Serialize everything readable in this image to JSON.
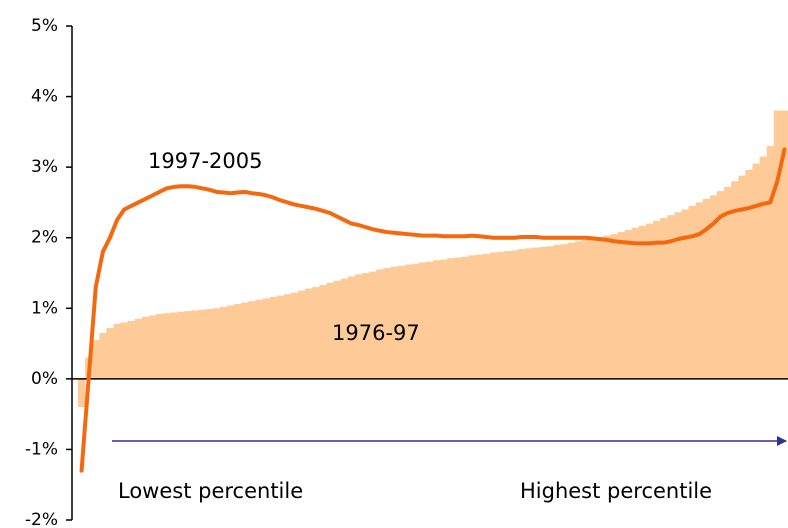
{
  "chart_data": {
    "type": "bar",
    "annotations": [
      "1997-2005",
      "1976-97",
      "Lowest percentile",
      "Highest percentile"
    ],
    "series": [
      {
        "name": "1976-97",
        "type": "bar",
        "color": "#fdca98",
        "values": [
          -0.4,
          0.3,
          0.55,
          0.65,
          0.72,
          0.78,
          0.8,
          0.82,
          0.85,
          0.88,
          0.9,
          0.92,
          0.93,
          0.94,
          0.95,
          0.96,
          0.97,
          0.98,
          0.99,
          1.0,
          1.02,
          1.04,
          1.06,
          1.08,
          1.1,
          1.12,
          1.14,
          1.16,
          1.18,
          1.2,
          1.22,
          1.25,
          1.28,
          1.3,
          1.33,
          1.36,
          1.39,
          1.42,
          1.45,
          1.48,
          1.5,
          1.52,
          1.55,
          1.57,
          1.59,
          1.6,
          1.62,
          1.63,
          1.65,
          1.66,
          1.68,
          1.69,
          1.71,
          1.72,
          1.73,
          1.75,
          1.76,
          1.77,
          1.79,
          1.8,
          1.81,
          1.82,
          1.84,
          1.85,
          1.86,
          1.87,
          1.88,
          1.9,
          1.91,
          1.93,
          1.95,
          1.97,
          1.99,
          2.01,
          2.03,
          2.05,
          2.08,
          2.11,
          2.14,
          2.17,
          2.2,
          2.24,
          2.28,
          2.32,
          2.36,
          2.4,
          2.45,
          2.5,
          2.55,
          2.6,
          2.66,
          2.72,
          2.8,
          2.88,
          2.96,
          3.05,
          3.15,
          3.3,
          3.8,
          3.8
        ]
      },
      {
        "name": "1997-2005",
        "type": "line",
        "color": "#f4680f",
        "values": [
          -1.3,
          0.0,
          1.3,
          1.8,
          2.0,
          2.25,
          2.4,
          2.45,
          2.5,
          2.55,
          2.6,
          2.65,
          2.7,
          2.72,
          2.73,
          2.73,
          2.72,
          2.7,
          2.68,
          2.65,
          2.64,
          2.63,
          2.64,
          2.65,
          2.63,
          2.62,
          2.6,
          2.57,
          2.53,
          2.5,
          2.47,
          2.45,
          2.43,
          2.41,
          2.38,
          2.35,
          2.3,
          2.25,
          2.2,
          2.18,
          2.15,
          2.12,
          2.1,
          2.08,
          2.07,
          2.06,
          2.05,
          2.04,
          2.03,
          2.03,
          2.03,
          2.02,
          2.02,
          2.02,
          2.02,
          2.03,
          2.02,
          2.01,
          2.0,
          2.0,
          2.0,
          2.0,
          2.01,
          2.01,
          2.01,
          2.0,
          2.0,
          2.0,
          2.0,
          2.0,
          2.0,
          2.0,
          1.99,
          1.98,
          1.97,
          1.95,
          1.94,
          1.93,
          1.92,
          1.92,
          1.92,
          1.93,
          1.93,
          1.95,
          1.98,
          2.0,
          2.02,
          2.05,
          2.12,
          2.2,
          2.3,
          2.35,
          2.38,
          2.4,
          2.42,
          2.45,
          2.48,
          2.5,
          2.8,
          3.25
        ]
      }
    ],
    "ylim": [
      -2,
      5
    ],
    "yticks": [
      {
        "value": -2,
        "label": "-2%"
      },
      {
        "value": -1,
        "label": "-1%"
      },
      {
        "value": 0,
        "label": "0%"
      },
      {
        "value": 1,
        "label": "1%"
      },
      {
        "value": 2,
        "label": "2%"
      },
      {
        "value": 3,
        "label": "3%"
      },
      {
        "value": 4,
        "label": "4%"
      },
      {
        "value": 5,
        "label": "5%"
      }
    ]
  }
}
